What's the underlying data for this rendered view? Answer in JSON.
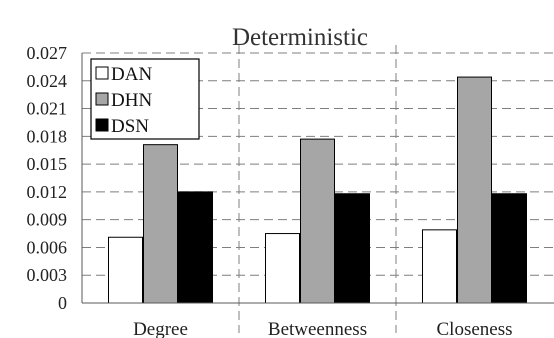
{
  "chart_data": {
    "type": "bar",
    "title": "Deterministic",
    "xlabel": "",
    "ylabel": "",
    "categories": [
      "Degree",
      "Betweenness",
      "Closeness"
    ],
    "series": [
      {
        "name": "DAN",
        "values": [
          0.0071,
          0.0075,
          0.0079
        ],
        "color": "#ffffff"
      },
      {
        "name": "DHN",
        "values": [
          0.0171,
          0.0177,
          0.0244
        ],
        "color": "#a6a6a6"
      },
      {
        "name": "DSN",
        "values": [
          0.012,
          0.0118,
          0.0118
        ],
        "color": "#000000"
      }
    ],
    "ylim": [
      0,
      0.027
    ],
    "yticks": [
      "0",
      "0.003",
      "0.006",
      "0.009",
      "0.012",
      "0.015",
      "0.018",
      "0.021",
      "0.024",
      "0.027"
    ],
    "grid": {
      "horizontal": "dashed",
      "vertical": "dashed"
    },
    "legend_position": "top-left"
  }
}
